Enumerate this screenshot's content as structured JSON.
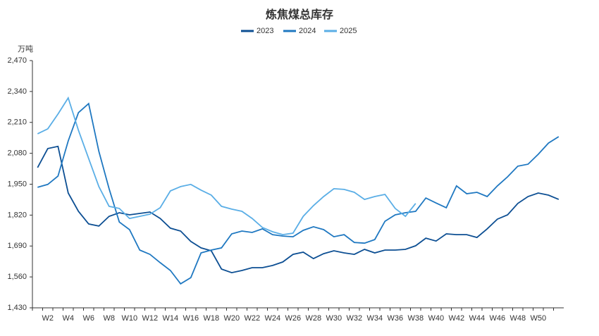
{
  "chart_data": {
    "type": "line",
    "title": "炼焦煤总库存",
    "y_label": "万吨",
    "categories": [
      null,
      "W2",
      null,
      "W4",
      null,
      "W6",
      null,
      "W8",
      null,
      "W10",
      null,
      "W12",
      null,
      "W14",
      null,
      "W16",
      null,
      "W18",
      null,
      "W20",
      null,
      "W22",
      null,
      "W24",
      null,
      "W26",
      null,
      "W28",
      null,
      "W30",
      null,
      "W32",
      null,
      "W34",
      null,
      "W36",
      null,
      "W38",
      null,
      "W40",
      null,
      "W42",
      null,
      "W44",
      null,
      "W46",
      null,
      "W48",
      null,
      "W50",
      null,
      null
    ],
    "series": [
      {
        "name": "2023",
        "color": "#0d4f93",
        "values": [
          2020,
          2100,
          2109,
          1913,
          1836,
          1783,
          1774,
          1815,
          1830,
          1821,
          1827,
          1833,
          1806,
          1765,
          1753,
          1709,
          1682,
          1670,
          1593,
          1578,
          1587,
          1599,
          1599,
          1608,
          1623,
          1655,
          1664,
          1637,
          1658,
          1670,
          1661,
          1655,
          1676,
          1661,
          1673,
          1673,
          1676,
          1691,
          1723,
          1711,
          1741,
          1738,
          1738,
          1726,
          1762,
          1803,
          1821,
          1869,
          1898,
          1913,
          1904,
          1886
        ]
      },
      {
        "name": "2024",
        "color": "#1f78c1",
        "values": [
          1937,
          1949,
          1984,
          2132,
          2251,
          2289,
          2088,
          1931,
          1791,
          1759,
          1673,
          1655,
          1620,
          1587,
          1531,
          1557,
          1661,
          1673,
          1682,
          1741,
          1753,
          1747,
          1762,
          1738,
          1732,
          1729,
          1756,
          1771,
          1759,
          1729,
          1738,
          1705,
          1702,
          1717,
          1794,
          1821,
          1830,
          1836,
          1892,
          1871,
          1851,
          1943,
          1910,
          1916,
          1898,
          1943,
          1981,
          2026,
          2034,
          2076,
          2123,
          2150
        ]
      },
      {
        "name": "2025",
        "color": "#5aaee6",
        "values": [
          2162,
          2183,
          2245,
          2313,
          2177,
          2058,
          1940,
          1857,
          1848,
          1806,
          1815,
          1824,
          1851,
          1922,
          1940,
          1949,
          1925,
          1904,
          1857,
          1845,
          1836,
          1806,
          1768,
          1750,
          1738,
          1744,
          1815,
          1860,
          1898,
          1931,
          1928,
          1916,
          1886,
          1898,
          1907,
          1848,
          1815,
          1869,
          null,
          null,
          null,
          null,
          null,
          null,
          null,
          null,
          null,
          null,
          null,
          null,
          null,
          null
        ]
      }
    ],
    "ylim": [
      1430,
      2470
    ],
    "yticks": [
      {
        "value": 1430,
        "label": "1,430"
      },
      {
        "value": 1560,
        "label": "1,560"
      },
      {
        "value": 1690,
        "label": "1,690"
      },
      {
        "value": 1820,
        "label": "1,820"
      },
      {
        "value": 1950,
        "label": "1,950"
      },
      {
        "value": 2080,
        "label": "2,080"
      },
      {
        "value": 2210,
        "label": "2,210"
      },
      {
        "value": 2340,
        "label": "2,340"
      },
      {
        "value": 2470,
        "label": "2,470"
      }
    ],
    "grid": false
  }
}
